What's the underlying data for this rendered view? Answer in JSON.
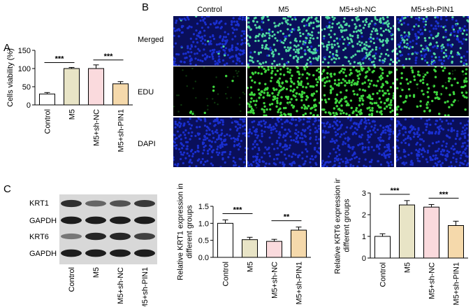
{
  "panel_letters": {
    "a": "A",
    "b": "B",
    "c": "C"
  },
  "panel_b": {
    "columns": [
      "Control",
      "M5",
      "M5+sh-NC",
      "M5+sh-PIN1"
    ],
    "rows": [
      "Merged",
      "EDU",
      "DAPI"
    ]
  },
  "panel_c_blot": {
    "bands": [
      "KRT1",
      "GAPDH",
      "KRT6",
      "GAPDH"
    ],
    "lanes": [
      "Control",
      "M5",
      "M5+sh-NC",
      "M5+sh-PIN1"
    ]
  },
  "colors": {
    "control": "#ffffff",
    "m5": "#e8e4c6",
    "m5_sh_nc": "#fadadd",
    "m5_sh_pin1": "#f5d9ab",
    "dapi_blue": "#1a2fd0",
    "edu_green": "#3dd63d"
  },
  "chart_data": [
    {
      "id": "A",
      "type": "bar",
      "categories": [
        "Control",
        "M5",
        "M5+sh-NC",
        "M5+sh-PIN1"
      ],
      "values": [
        30,
        100,
        100,
        58
      ],
      "errors": [
        4,
        3,
        10,
        6
      ],
      "ylabel": "Cells viability (%)",
      "ylim": [
        0,
        150
      ],
      "yticks": [
        0,
        50,
        100,
        150
      ],
      "significance": [
        {
          "from": 0,
          "to": 1,
          "label": "***"
        },
        {
          "from": 2,
          "to": 3,
          "label": "***"
        }
      ]
    },
    {
      "id": "C-KRT1",
      "type": "bar",
      "categories": [
        "Control",
        "M5",
        "M5+sh-NC",
        "M5+sh-PIN1"
      ],
      "values": [
        1.0,
        0.52,
        0.47,
        0.8
      ],
      "errors": [
        0.1,
        0.07,
        0.06,
        0.09
      ],
      "ylabel": "Relative KRT1 expression in different groups",
      "ylim": [
        0,
        1.5
      ],
      "yticks": [
        "0.0",
        "0.5",
        "1.0",
        "1.5"
      ],
      "significance": [
        {
          "from": 0,
          "to": 1,
          "label": "***"
        },
        {
          "from": 2,
          "to": 3,
          "label": "**"
        }
      ]
    },
    {
      "id": "C-KRT6",
      "type": "bar",
      "categories": [
        "Control",
        "M5",
        "M5+sh-NC",
        "M5+sh-PIN1"
      ],
      "values": [
        1.0,
        2.45,
        2.35,
        1.5
      ],
      "errors": [
        0.12,
        0.2,
        0.12,
        0.2
      ],
      "ylabel": "Relative KRT6 expression in different groups",
      "ylim": [
        0,
        3
      ],
      "yticks": [
        0,
        1,
        2,
        3
      ],
      "significance": [
        {
          "from": 0,
          "to": 1,
          "label": "***"
        },
        {
          "from": 2,
          "to": 3,
          "label": "***"
        }
      ]
    }
  ]
}
